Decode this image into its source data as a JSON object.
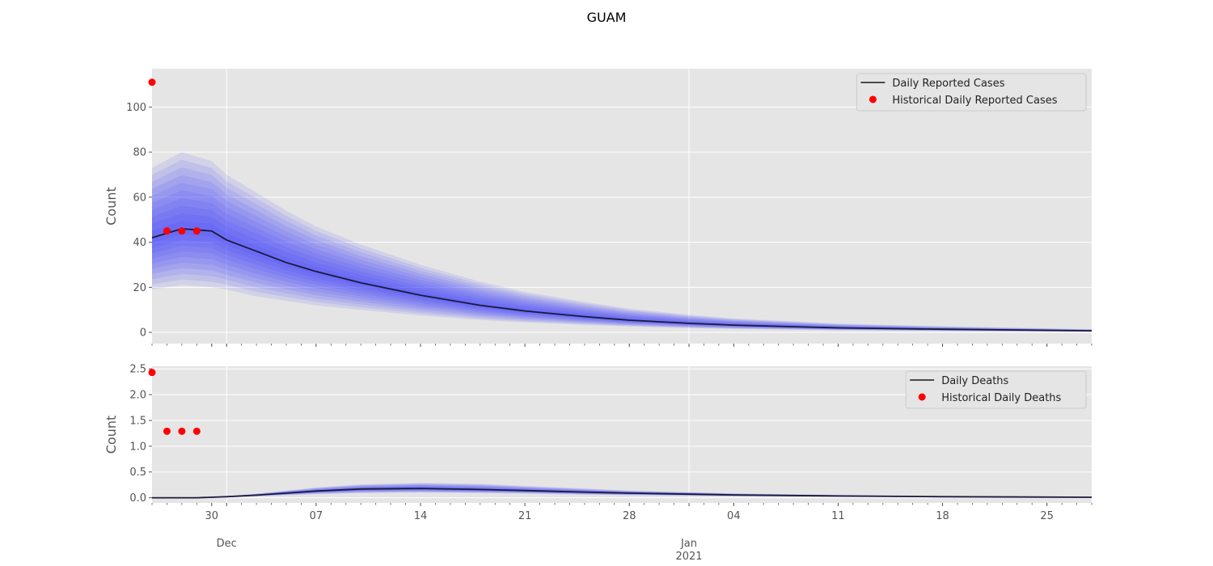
{
  "chart_data": {
    "type": "line",
    "title": "GUAM",
    "colors": {
      "forecast_line": "#1a1a3a",
      "historical_points": "#ff0000",
      "band": "#3a3aff",
      "panel_bg": "#e5e5e5",
      "grid": "#ffffff"
    },
    "x_axis": {
      "start": "2020-11-26",
      "end": "2021-01-28",
      "major_ticks": [
        {
          "date": "2020-11-30",
          "label": "30"
        },
        {
          "date": "2020-12-07",
          "label": "07"
        },
        {
          "date": "2020-12-14",
          "label": "14"
        },
        {
          "date": "2020-12-21",
          "label": "21"
        },
        {
          "date": "2020-12-28",
          "label": "28"
        },
        {
          "date": "2021-01-04",
          "label": "04"
        },
        {
          "date": "2021-01-11",
          "label": "11"
        },
        {
          "date": "2021-01-18",
          "label": "18"
        },
        {
          "date": "2021-01-25",
          "label": "25"
        }
      ],
      "month_labels": [
        {
          "date": "2020-12-01",
          "label": "Dec"
        },
        {
          "date": "2021-01-01",
          "label": "Jan\n2021"
        }
      ]
    },
    "panels": [
      {
        "ylabel": "Count",
        "ylim": [
          -5,
          117
        ],
        "yticks": [
          0,
          20,
          40,
          60,
          80,
          100
        ],
        "legend": [
          "Daily Reported Cases",
          "Historical Daily Reported Cases"
        ],
        "legend_position": "upper right",
        "historical": {
          "x": [
            "2020-11-26",
            "2020-11-27",
            "2020-11-28",
            "2020-11-29"
          ],
          "values": [
            111,
            45,
            45,
            45
          ]
        },
        "forecast": {
          "x": [
            "2020-11-26",
            "2020-11-28",
            "2020-11-30",
            "2020-12-01",
            "2020-12-03",
            "2020-12-05",
            "2020-12-07",
            "2020-12-10",
            "2020-12-14",
            "2020-12-18",
            "2020-12-21",
            "2020-12-25",
            "2020-12-28",
            "2021-01-01",
            "2021-01-04",
            "2021-01-11",
            "2021-01-18",
            "2021-01-28"
          ],
          "median": [
            42,
            46,
            45,
            41,
            36,
            31,
            27,
            22,
            16.5,
            12,
            9.5,
            7,
            5.4,
            4,
            3.2,
            2.0,
            1.4,
            0.7
          ],
          "lower_90": [
            19,
            21,
            20,
            19,
            16,
            14,
            12,
            10,
            7.5,
            5.5,
            4.4,
            3.3,
            2.6,
            1.9,
            1.5,
            0.9,
            0.6,
            0.3
          ],
          "upper_90": [
            73,
            80,
            76,
            70,
            62,
            54,
            47,
            39,
            30,
            22.5,
            18,
            13.5,
            10.5,
            7.8,
            6.2,
            3.9,
            2.7,
            1.4
          ]
        }
      },
      {
        "ylabel": "Count",
        "ylim": [
          -0.1,
          2.55
        ],
        "yticks": [
          0.0,
          0.5,
          1.0,
          1.5,
          2.0,
          2.5
        ],
        "ytick_labels": [
          "0.0",
          "0.5",
          "1.0",
          "1.5",
          "2.0",
          "2.5"
        ],
        "legend": [
          "Daily Deaths",
          "Historical Daily Deaths"
        ],
        "legend_position": "upper right",
        "historical": {
          "x": [
            "2020-11-26",
            "2020-11-27",
            "2020-11-28",
            "2020-11-29"
          ],
          "values": [
            2.43,
            1.29,
            1.29,
            1.29
          ]
        },
        "forecast": {
          "x": [
            "2020-11-26",
            "2020-11-29",
            "2020-12-01",
            "2020-12-03",
            "2020-12-05",
            "2020-12-07",
            "2020-12-10",
            "2020-12-14",
            "2020-12-18",
            "2020-12-21",
            "2020-12-25",
            "2020-12-28",
            "2021-01-01",
            "2021-01-04",
            "2021-01-11",
            "2021-01-18",
            "2021-01-28"
          ],
          "median": [
            0.0,
            0.0,
            0.02,
            0.05,
            0.09,
            0.13,
            0.17,
            0.18,
            0.16,
            0.14,
            0.11,
            0.09,
            0.07,
            0.055,
            0.035,
            0.02,
            0.01
          ],
          "lower_90": [
            0.0,
            0.0,
            0.01,
            0.03,
            0.05,
            0.07,
            0.09,
            0.1,
            0.09,
            0.08,
            0.06,
            0.05,
            0.04,
            0.03,
            0.02,
            0.01,
            0.005
          ],
          "upper_90": [
            0.0,
            0.0,
            0.03,
            0.08,
            0.14,
            0.2,
            0.26,
            0.29,
            0.27,
            0.23,
            0.18,
            0.14,
            0.11,
            0.085,
            0.055,
            0.035,
            0.02
          ]
        }
      }
    ]
  }
}
